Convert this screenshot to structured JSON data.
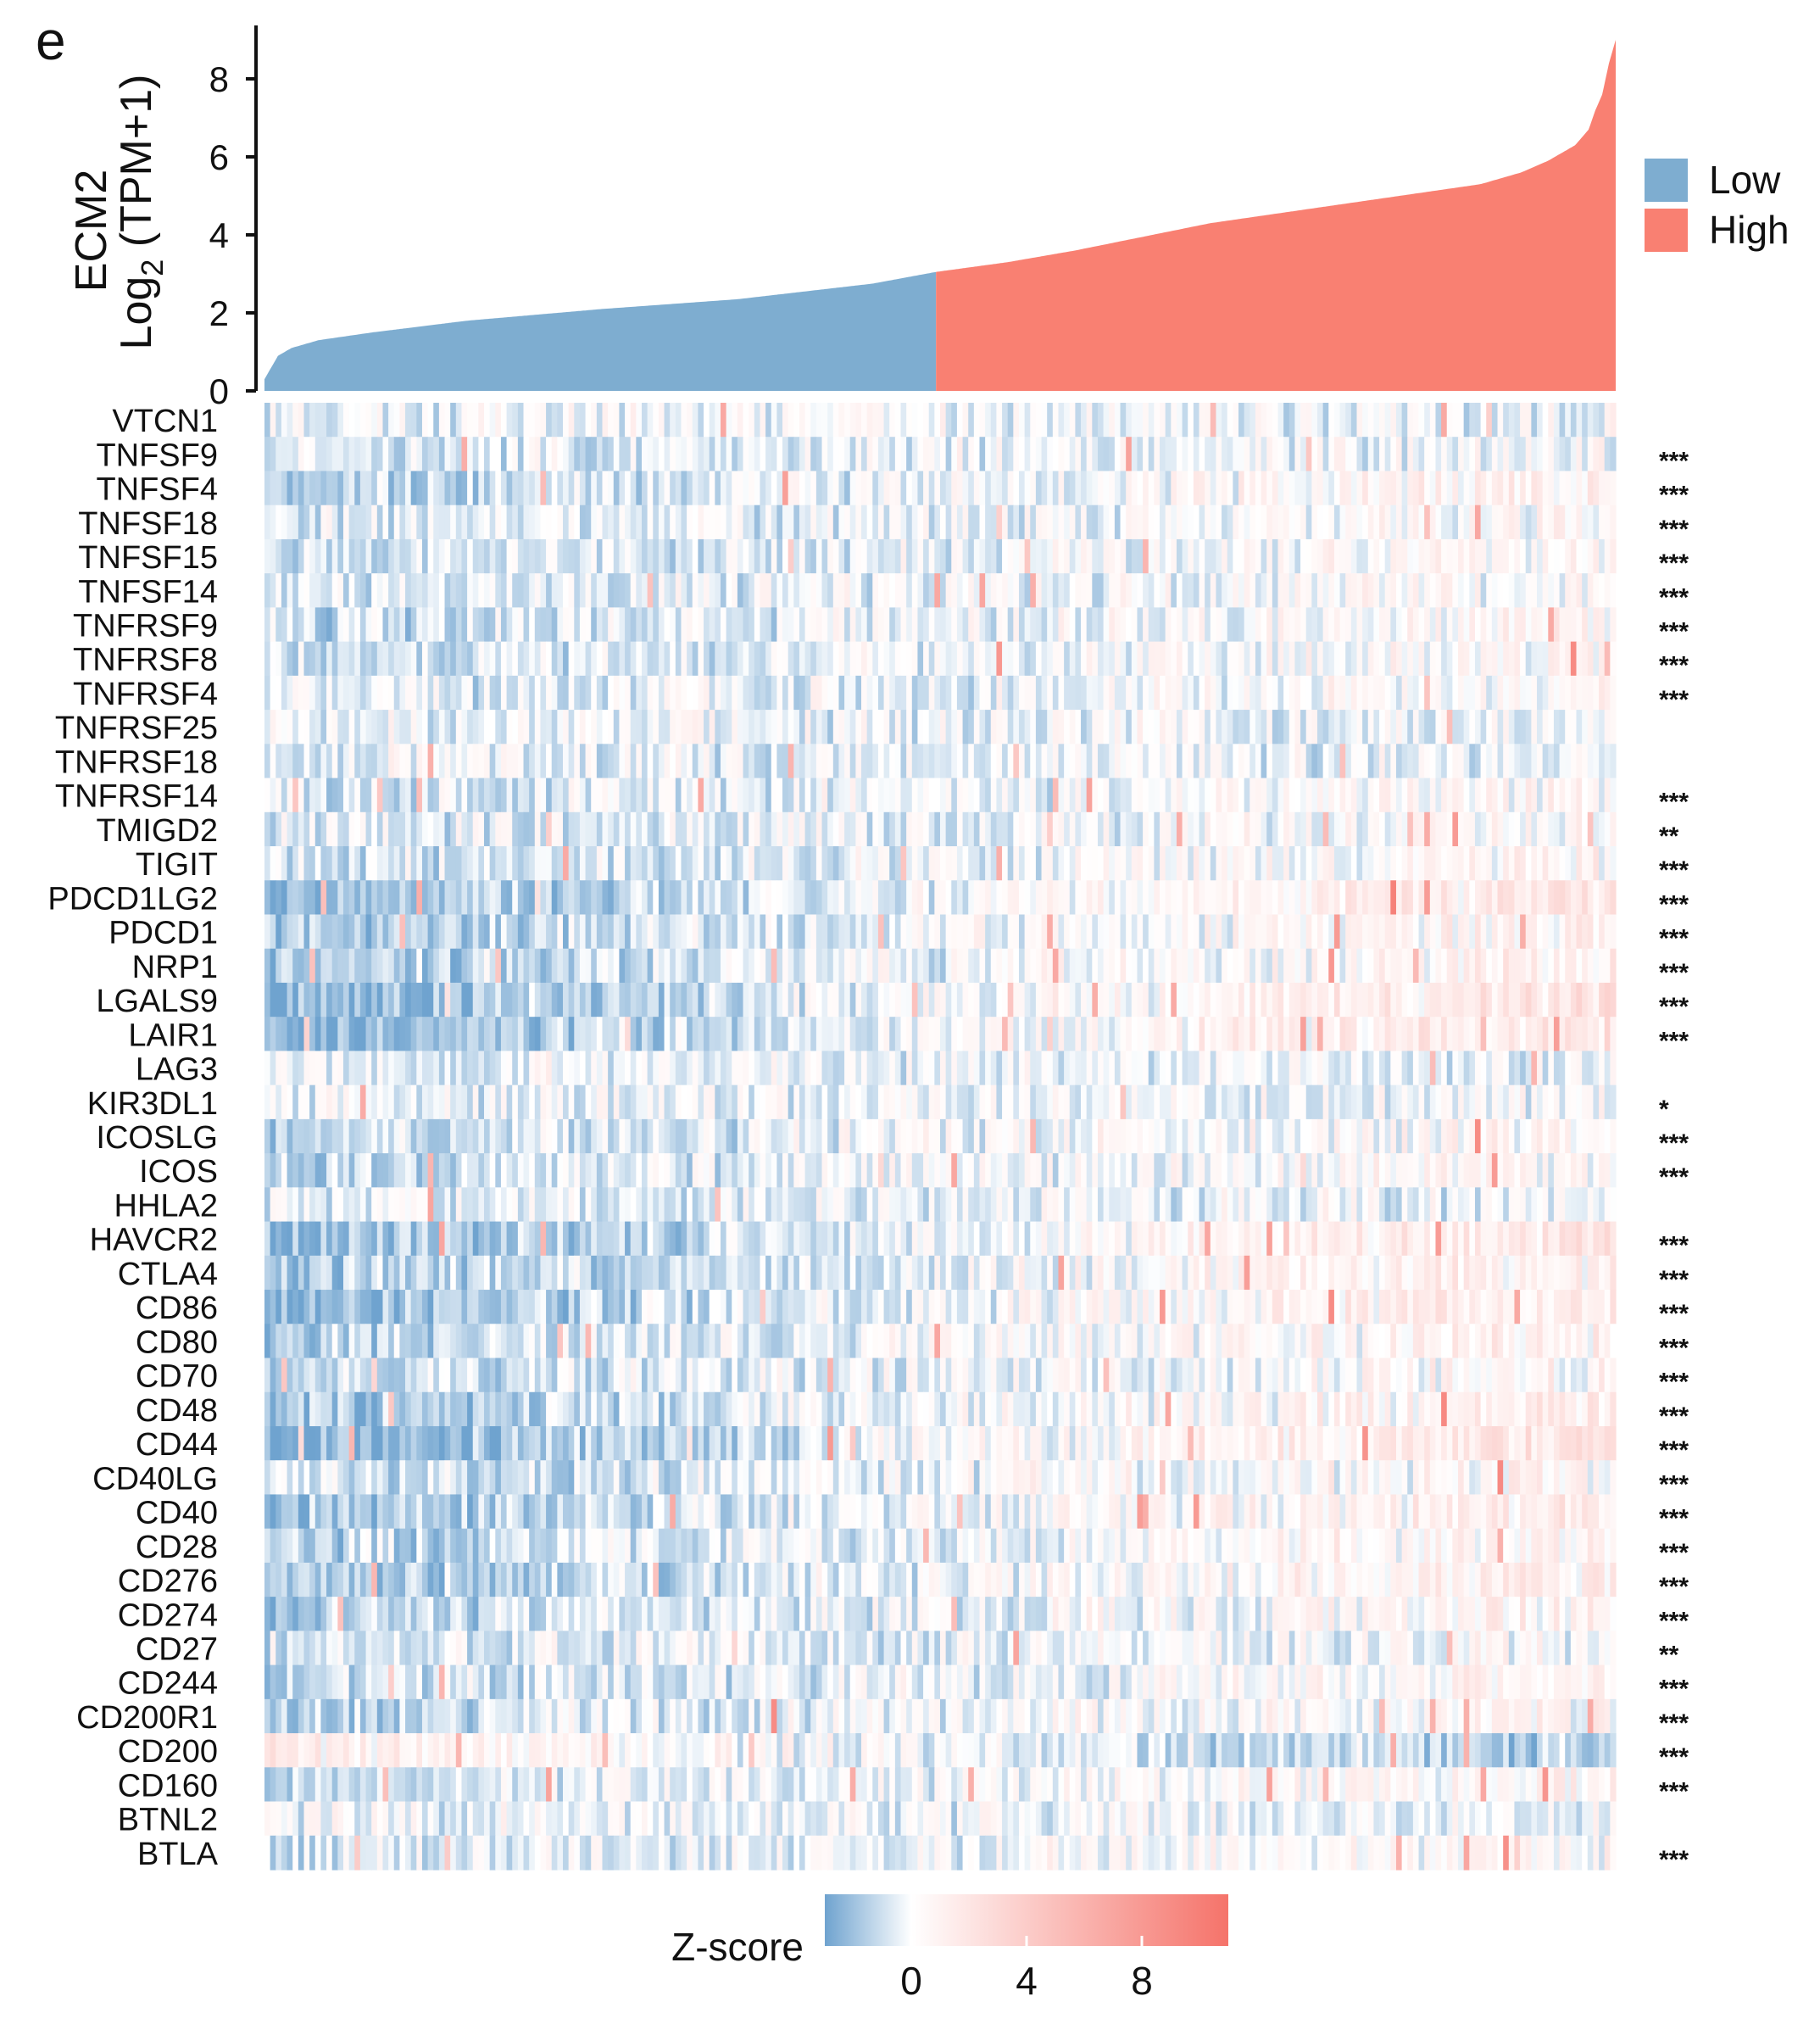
{
  "panel_label": "e",
  "colors": {
    "low": "#7EADD0",
    "high": "#F98072",
    "z_low": "#6FA3CF",
    "z_mid": "#FFFFFF",
    "z_high": "#F5736A"
  },
  "chart_data": [
    {
      "type": "area",
      "title": "",
      "ylabel_line1": "ECM2",
      "ylabel_line2_prefix": "Log",
      "ylabel_line2_sub": "2",
      "ylabel_line2_suffix": " (TPM+1)",
      "ylim": [
        0,
        9
      ],
      "yticks": [
        0,
        2,
        4,
        6,
        8
      ],
      "n_samples": 500,
      "split_fraction": 0.497,
      "split_value": 3.05,
      "curve": {
        "fraction": [
          0,
          0.005,
          0.01,
          0.02,
          0.04,
          0.08,
          0.15,
          0.25,
          0.35,
          0.45,
          0.497,
          0.55,
          0.6,
          0.65,
          0.7,
          0.75,
          0.8,
          0.85,
          0.9,
          0.93,
          0.95,
          0.97,
          0.98,
          0.985,
          0.99,
          0.995,
          1.0
        ],
        "value": [
          0.3,
          0.6,
          0.9,
          1.1,
          1.3,
          1.5,
          1.8,
          2.1,
          2.35,
          2.75,
          3.05,
          3.3,
          3.6,
          3.95,
          4.3,
          4.55,
          4.8,
          5.05,
          5.3,
          5.6,
          5.9,
          6.3,
          6.7,
          7.2,
          7.6,
          8.4,
          9.0
        ]
      },
      "legend": [
        {
          "label": "Low",
          "color": "#7EADD0"
        },
        {
          "label": "High",
          "color": "#F98072"
        }
      ],
      "legend_position": "right"
    },
    {
      "type": "heatmap",
      "genes": [
        "VTCN1",
        "TNFSF9",
        "TNFSF4",
        "TNFSF18",
        "TNFSF15",
        "TNFSF14",
        "TNFRSF9",
        "TNFRSF8",
        "TNFRSF4",
        "TNFRSF25",
        "TNFRSF18",
        "TNFRSF14",
        "TMIGD2",
        "TIGIT",
        "PDCD1LG2",
        "PDCD1",
        "NRP1",
        "LGALS9",
        "LAIR1",
        "LAG3",
        "KIR3DL1",
        "ICOSLG",
        "ICOS",
        "HHLA2",
        "HAVCR2",
        "CTLA4",
        "CD86",
        "CD80",
        "CD70",
        "CD48",
        "CD44",
        "CD40LG",
        "CD40",
        "CD28",
        "CD276",
        "CD274",
        "CD27",
        "CD244",
        "CD200R1",
        "CD200",
        "CD160",
        "BTNL2",
        "BTLA"
      ],
      "significance": [
        "",
        "***",
        "***",
        "***",
        "***",
        "***",
        "***",
        "***",
        "***",
        "",
        "",
        "***",
        "**",
        "***",
        "***",
        "***",
        "***",
        "***",
        "***",
        "",
        "*",
        "***",
        "***",
        "",
        "***",
        "***",
        "***",
        "***",
        "***",
        "***",
        "***",
        "***",
        "***",
        "***",
        "***",
        "***",
        "**",
        "***",
        "***",
        "***",
        "***",
        "",
        "***"
      ],
      "trend": [
        0.0,
        0.2,
        0.9,
        0.3,
        0.5,
        0.4,
        0.5,
        0.5,
        0.3,
        0.0,
        0.0,
        0.4,
        0.3,
        0.5,
        1.3,
        0.9,
        0.9,
        1.5,
        1.4,
        0.0,
        0.1,
        0.6,
        0.6,
        0.0,
        1.3,
        0.9,
        1.3,
        0.8,
        0.6,
        1.0,
        1.6,
        0.6,
        1.1,
        0.8,
        1.0,
        0.8,
        0.3,
        0.6,
        0.6,
        -1.0,
        0.6,
        0.0,
        0.5
      ],
      "colorbar": {
        "label": "Z-score",
        "ticks": [
          0,
          4,
          8
        ],
        "range": [
          -3,
          11
        ]
      }
    }
  ]
}
